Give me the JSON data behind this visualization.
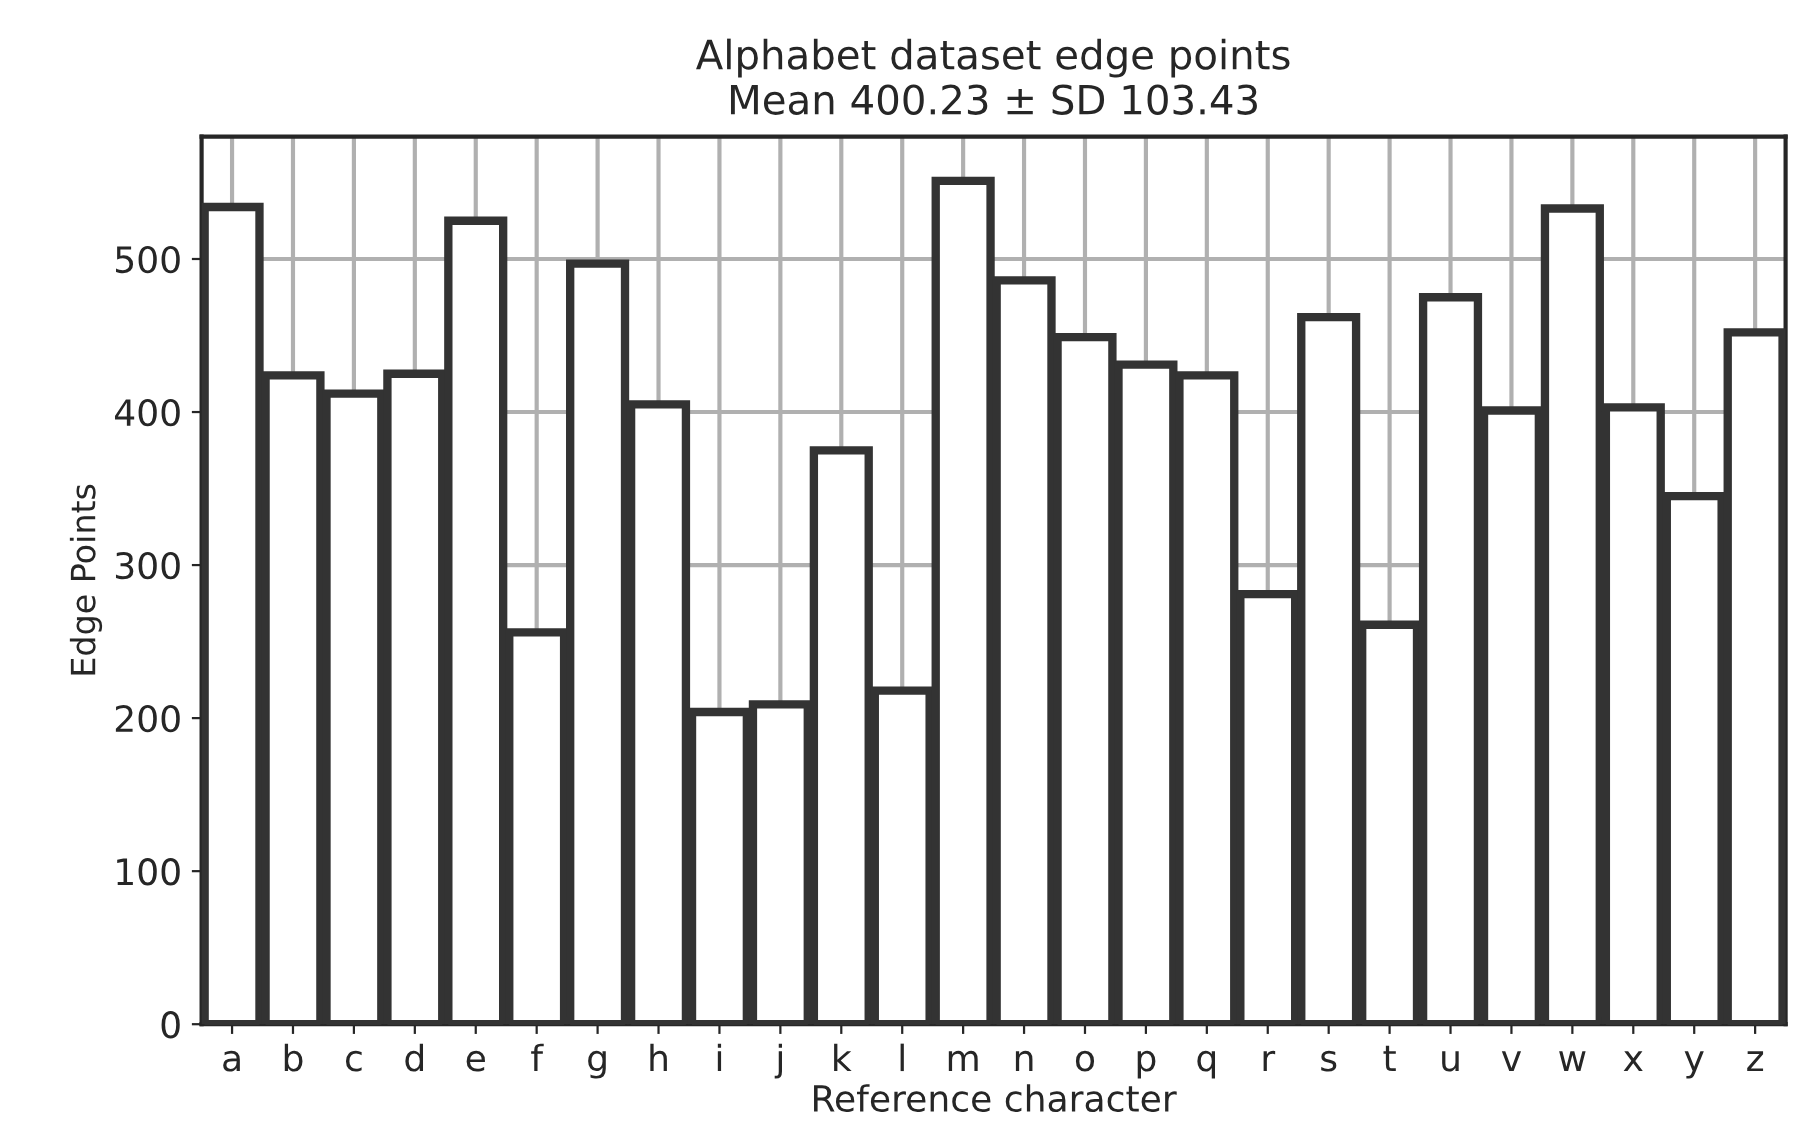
{
  "chart_data": {
    "type": "bar",
    "title": "Alphabet dataset edge points",
    "subtitle": "Mean 400.23 ± SD 103.43",
    "xlabel": "Reference character",
    "ylabel": "Edge Points",
    "categories": [
      "a",
      "b",
      "c",
      "d",
      "e",
      "f",
      "g",
      "h",
      "i",
      "j",
      "k",
      "l",
      "m",
      "n",
      "o",
      "p",
      "q",
      "r",
      "s",
      "t",
      "u",
      "v",
      "w",
      "x",
      "y",
      "z"
    ],
    "series": [
      {
        "color": "#ffffff",
        "values": [
          534,
          424,
          412,
          425,
          525,
          256,
          497,
          405,
          204,
          209,
          375,
          218,
          551,
          486,
          449,
          431,
          424,
          281,
          462,
          261,
          475,
          401,
          533,
          403,
          345,
          452
        ]
      }
    ],
    "ylim": [
      0,
      580
    ],
    "yticks": [
      0,
      100,
      200,
      300,
      400,
      500
    ],
    "grid": true
  }
}
